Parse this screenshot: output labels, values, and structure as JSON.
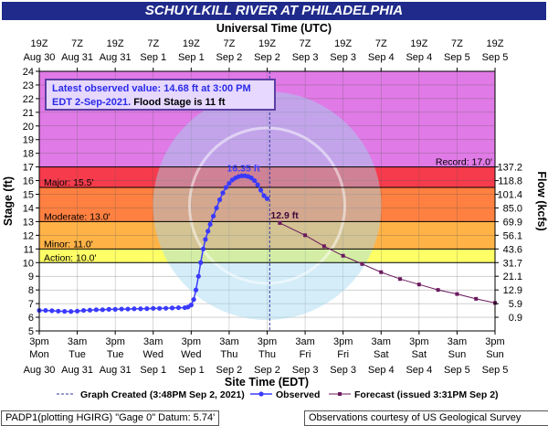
{
  "title": "SCHUYLKILL RIVER AT PHILADELPHIA",
  "top_axis_title": "Universal Time (UTC)",
  "bottom_axis_title": "Site Time (EDT)",
  "info_box": {
    "line1": "Latest observed value: 14.68 ft at 3:00 PM",
    "line2a": "EDT 2-Sep-2021.",
    "line2b": "Flood Stage is 11 ft"
  },
  "legend": {
    "created": "Graph Created (3:48PM Sep 2, 2021)",
    "observed": "Observed",
    "forecast": "Forecast (issued 3:31PM Sep 2)"
  },
  "footer_left": "PADP1(plotting HGIRG) \"Gage 0\" Datum:  5.74'",
  "footer_right": "Observations courtesy of US Geological Survey",
  "colors": {
    "major": "#e64a7a",
    "moderate": "#ff3333",
    "moderate_fill": "#ff8040",
    "minor": "#ffb347",
    "action": "#ffff66",
    "record_band": "#e07ae6",
    "observed": "#3a3aff",
    "forecast": "#6b1a5e",
    "title_bg": "#1f2a8a"
  },
  "chart_data": {
    "type": "line",
    "ylabel": "Stage (ft)",
    "y2label": "Flow (kcfs)",
    "ylim": [
      5,
      24
    ],
    "yticks": [
      5,
      6,
      7,
      8,
      9,
      10,
      11,
      12,
      13,
      14,
      15,
      16,
      17,
      18,
      19,
      20,
      21,
      22,
      23,
      24
    ],
    "flow_ticks": [
      {
        "stage": 6.0,
        "label": "0.9"
      },
      {
        "stage": 7.0,
        "label": "5.9"
      },
      {
        "stage": 8.0,
        "label": "12.9"
      },
      {
        "stage": 9.0,
        "label": "21.1"
      },
      {
        "stage": 10.0,
        "label": "31.7"
      },
      {
        "stage": 11.0,
        "label": "43.6"
      },
      {
        "stage": 12.0,
        "label": "56.1"
      },
      {
        "stage": 13.0,
        "label": "69.9"
      },
      {
        "stage": 14.0,
        "label": "85.0"
      },
      {
        "stage": 15.0,
        "label": "101.4"
      },
      {
        "stage": 16.0,
        "label": "118.8"
      },
      {
        "stage": 17.0,
        "label": "137.2"
      }
    ],
    "thresholds": [
      {
        "name": "Record",
        "label": "Record: 17.0'",
        "value": 17.0
      },
      {
        "name": "Major",
        "label": "Major: 15.5'",
        "value": 15.5
      },
      {
        "name": "Moderate",
        "label": "Moderate: 13.0'",
        "value": 13.0
      },
      {
        "name": "Minor",
        "label": "Minor: 11.0'",
        "value": 11.0
      },
      {
        "name": "Action",
        "label": "Action: 10.0'",
        "value": 10.0
      }
    ],
    "x_hours_range": [
      0,
      144
    ],
    "bottom_ticks": [
      {
        "h": 0,
        "l1": "3pm",
        "l2": "Mon",
        "l3": "Aug 30"
      },
      {
        "h": 12,
        "l1": "3am",
        "l2": "Tue",
        "l3": "Aug 31"
      },
      {
        "h": 24,
        "l1": "3pm",
        "l2": "Tue",
        "l3": "Aug 31"
      },
      {
        "h": 36,
        "l1": "3am",
        "l2": "Wed",
        "l3": "Sep 1"
      },
      {
        "h": 48,
        "l1": "3pm",
        "l2": "Wed",
        "l3": "Sep 1"
      },
      {
        "h": 60,
        "l1": "3am",
        "l2": "Thu",
        "l3": "Sep 2"
      },
      {
        "h": 72,
        "l1": "3pm",
        "l2": "Thu",
        "l3": "Sep 2"
      },
      {
        "h": 84,
        "l1": "3am",
        "l2": "Fri",
        "l3": "Sep 3"
      },
      {
        "h": 96,
        "l1": "3pm",
        "l2": "Fri",
        "l3": "Sep 3"
      },
      {
        "h": 108,
        "l1": "3am",
        "l2": "Sat",
        "l3": "Sep 4"
      },
      {
        "h": 120,
        "l1": "3pm",
        "l2": "Sat",
        "l3": "Sep 4"
      },
      {
        "h": 132,
        "l1": "3am",
        "l2": "Sun",
        "l3": "Sep 5"
      },
      {
        "h": 144,
        "l1": "3pm",
        "l2": "Sun",
        "l3": "Sep 5"
      }
    ],
    "top_ticks": [
      {
        "h": 0,
        "l1": "19Z",
        "l2": "Aug 30"
      },
      {
        "h": 12,
        "l1": "7Z",
        "l2": "Aug 31"
      },
      {
        "h": 24,
        "l1": "19Z",
        "l2": "Aug 31"
      },
      {
        "h": 36,
        "l1": "7Z",
        "l2": "Sep 1"
      },
      {
        "h": 48,
        "l1": "19Z",
        "l2": "Sep 1"
      },
      {
        "h": 60,
        "l1": "7Z",
        "l2": "Sep 2"
      },
      {
        "h": 72,
        "l1": "19Z",
        "l2": "Sep 2"
      },
      {
        "h": 84,
        "l1": "7Z",
        "l2": "Sep 3"
      },
      {
        "h": 96,
        "l1": "19Z",
        "l2": "Sep 3"
      },
      {
        "h": 108,
        "l1": "7Z",
        "l2": "Sep 4"
      },
      {
        "h": 120,
        "l1": "19Z",
        "l2": "Sep 4"
      },
      {
        "h": 132,
        "l1": "7Z",
        "l2": "Sep 5"
      },
      {
        "h": 144,
        "l1": "19Z",
        "l2": "Sep 5"
      }
    ],
    "created_hour": 72.8,
    "series": [
      {
        "name": "Observed",
        "points": [
          [
            0,
            6.5
          ],
          [
            2,
            6.5
          ],
          [
            4,
            6.48
          ],
          [
            6,
            6.45
          ],
          [
            8,
            6.43
          ],
          [
            10,
            6.42
          ],
          [
            12,
            6.45
          ],
          [
            14,
            6.5
          ],
          [
            16,
            6.52
          ],
          [
            18,
            6.55
          ],
          [
            20,
            6.55
          ],
          [
            22,
            6.58
          ],
          [
            24,
            6.58
          ],
          [
            26,
            6.6
          ],
          [
            28,
            6.6
          ],
          [
            30,
            6.62
          ],
          [
            32,
            6.62
          ],
          [
            34,
            6.63
          ],
          [
            36,
            6.65
          ],
          [
            38,
            6.65
          ],
          [
            40,
            6.66
          ],
          [
            42,
            6.68
          ],
          [
            44,
            6.7
          ],
          [
            46,
            6.7
          ],
          [
            47,
            6.75
          ],
          [
            48,
            6.9
          ],
          [
            48.8,
            7.3
          ],
          [
            49.5,
            8.0
          ],
          [
            50.3,
            9.0
          ],
          [
            51,
            10.0
          ],
          [
            51.8,
            11.0
          ],
          [
            52.5,
            11.7
          ],
          [
            53.3,
            12.3
          ],
          [
            54,
            12.8
          ],
          [
            55,
            13.4
          ],
          [
            56,
            14.0
          ],
          [
            57,
            14.6
          ],
          [
            58,
            15.1
          ],
          [
            59,
            15.5
          ],
          [
            60,
            15.8
          ],
          [
            61,
            16.05
          ],
          [
            62,
            16.2
          ],
          [
            63,
            16.3
          ],
          [
            64,
            16.35
          ],
          [
            65,
            16.35
          ],
          [
            66,
            16.3
          ],
          [
            67,
            16.2
          ],
          [
            68,
            16.0
          ],
          [
            69,
            15.7
          ],
          [
            70,
            15.3
          ],
          [
            71,
            14.9
          ],
          [
            72,
            14.68
          ]
        ]
      },
      {
        "name": "Forecast",
        "points": [
          [
            76,
            12.9
          ],
          [
            84,
            12.0
          ],
          [
            90,
            11.2
          ],
          [
            96,
            10.5
          ],
          [
            102,
            9.9
          ],
          [
            108,
            9.3
          ],
          [
            114,
            8.8
          ],
          [
            120,
            8.4
          ],
          [
            126,
            8.0
          ],
          [
            132,
            7.7
          ],
          [
            138,
            7.35
          ],
          [
            144,
            7.05
          ]
        ]
      }
    ],
    "annotations": [
      {
        "text": "16.35 ft",
        "h": 64.5,
        "v": 16.35
      },
      {
        "text": "12.9 ft",
        "h": 76,
        "v": 12.9
      }
    ]
  }
}
